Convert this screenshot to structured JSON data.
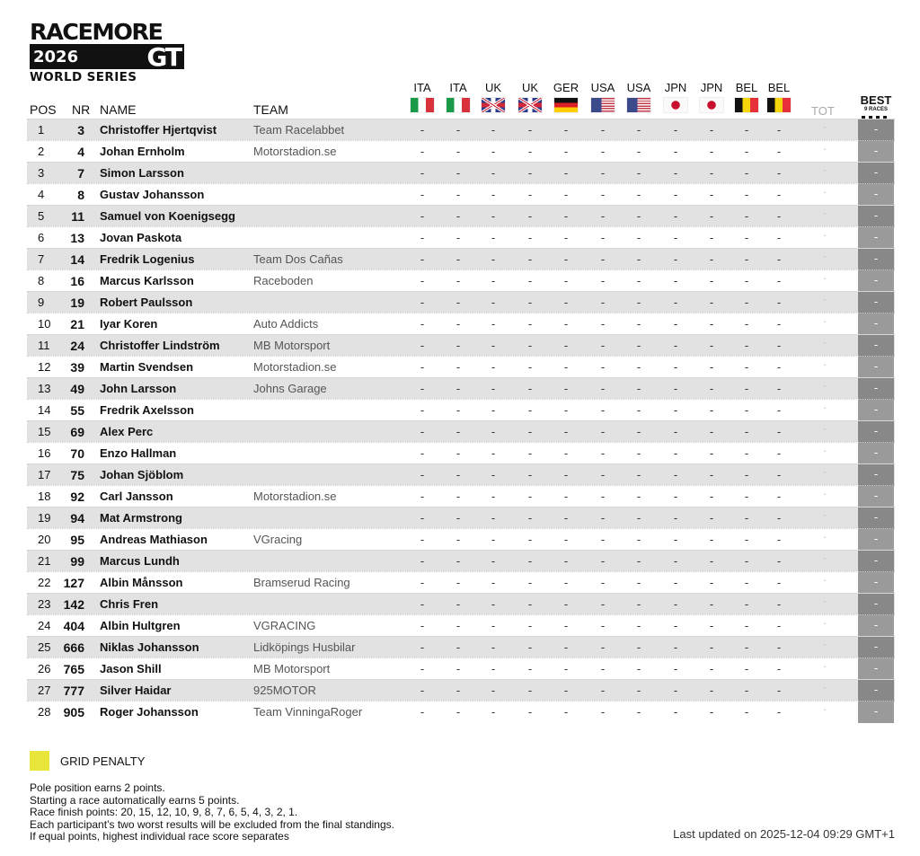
{
  "logo": {
    "line1": "RACEMORE",
    "year": "2026",
    "gt": "GT",
    "line3": "WORLD SERIES"
  },
  "headers": {
    "pos": "POS",
    "nr": "NR",
    "name": "NAME",
    "team": "TEAM",
    "tot": "TOT",
    "best": "BEST",
    "best_sub": "9 RACES"
  },
  "races": [
    {
      "label": "ITA",
      "flag": "italy"
    },
    {
      "label": "ITA",
      "flag": "italy"
    },
    {
      "label": "UK",
      "flag": "uk"
    },
    {
      "label": "UK",
      "flag": "uk"
    },
    {
      "label": "GER",
      "flag": "germany"
    },
    {
      "label": "USA",
      "flag": "usa"
    },
    {
      "label": "USA",
      "flag": "usa"
    },
    {
      "label": "JPN",
      "flag": "japan"
    },
    {
      "label": "JPN",
      "flag": "japan"
    },
    {
      "label": "BEL",
      "flag": "belgium"
    },
    {
      "label": "BEL",
      "flag": "belgium"
    }
  ],
  "empty_value": "-",
  "rows": [
    {
      "pos": "1",
      "nr": "3",
      "name": "Christoffer Hjertqvist",
      "team": "Team Racelabbet"
    },
    {
      "pos": "2",
      "nr": "4",
      "name": "Johan Ernholm",
      "team": "Motorstadion.se"
    },
    {
      "pos": "3",
      "nr": "7",
      "name": "Simon Larsson",
      "team": ""
    },
    {
      "pos": "4",
      "nr": "8",
      "name": "Gustav Johansson",
      "team": ""
    },
    {
      "pos": "5",
      "nr": "11",
      "name": "Samuel von Koenigsegg",
      "team": ""
    },
    {
      "pos": "6",
      "nr": "13",
      "name": "Jovan Paskota",
      "team": ""
    },
    {
      "pos": "7",
      "nr": "14",
      "name": "Fredrik Logenius",
      "team": "Team Dos Cañas"
    },
    {
      "pos": "8",
      "nr": "16",
      "name": "Marcus Karlsson",
      "team": "Raceboden"
    },
    {
      "pos": "9",
      "nr": "19",
      "name": "Robert Paulsson",
      "team": ""
    },
    {
      "pos": "10",
      "nr": "21",
      "name": "Iyar Koren",
      "team": "Auto Addicts"
    },
    {
      "pos": "11",
      "nr": "24",
      "name": "Christoffer Lindström",
      "team": "MB Motorsport"
    },
    {
      "pos": "12",
      "nr": "39",
      "name": "Martin Svendsen",
      "team": "Motorstadion.se"
    },
    {
      "pos": "13",
      "nr": "49",
      "name": "John Larsson",
      "team": "Johns Garage"
    },
    {
      "pos": "14",
      "nr": "55",
      "name": "Fredrik Axelsson",
      "team": ""
    },
    {
      "pos": "15",
      "nr": "69",
      "name": "Alex Perc",
      "team": ""
    },
    {
      "pos": "16",
      "nr": "70",
      "name": "Enzo Hallman",
      "team": ""
    },
    {
      "pos": "17",
      "nr": "75",
      "name": "Johan Sjöblom",
      "team": ""
    },
    {
      "pos": "18",
      "nr": "92",
      "name": "Carl Jansson",
      "team": "Motorstadion.se"
    },
    {
      "pos": "19",
      "nr": "94",
      "name": "Mat Armstrong",
      "team": ""
    },
    {
      "pos": "20",
      "nr": "95",
      "name": "Andreas Mathiason",
      "team": "VGracing"
    },
    {
      "pos": "21",
      "nr": "99",
      "name": "Marcus Lundh",
      "team": ""
    },
    {
      "pos": "22",
      "nr": "127",
      "name": "Albin Månsson",
      "team": "Bramserud Racing"
    },
    {
      "pos": "23",
      "nr": "142",
      "name": "Chris Fren",
      "team": ""
    },
    {
      "pos": "24",
      "nr": "404",
      "name": "Albin Hultgren",
      "team": "VGRACING"
    },
    {
      "pos": "25",
      "nr": "666",
      "name": "Niklas Johansson",
      "team": "Lidköpings Husbilar"
    },
    {
      "pos": "26",
      "nr": "765",
      "name": "Jason Shill",
      "team": "MB Motorsport"
    },
    {
      "pos": "27",
      "nr": "777",
      "name": "Silver Haidar",
      "team": "925MOTOR"
    },
    {
      "pos": "28",
      "nr": "905",
      "name": "Roger Johansson",
      "team": "Team VinningaRoger"
    }
  ],
  "legend": {
    "label": "GRID PENALTY",
    "color": "#e8e63a"
  },
  "rules": [
    "Pole position earns 2 points.",
    "Starting a race automatically earns 5 points.",
    "Race finish points: 20, 15, 12, 10, 9, 8, 7, 6, 5, 4, 3, 2, 1.",
    "Each participant’s two worst results will be excluded from the final standings.",
    "If equal points, highest individual race score separates"
  ],
  "last_updated": "Last updated on 2025-12-04 09:29 GMT+1"
}
